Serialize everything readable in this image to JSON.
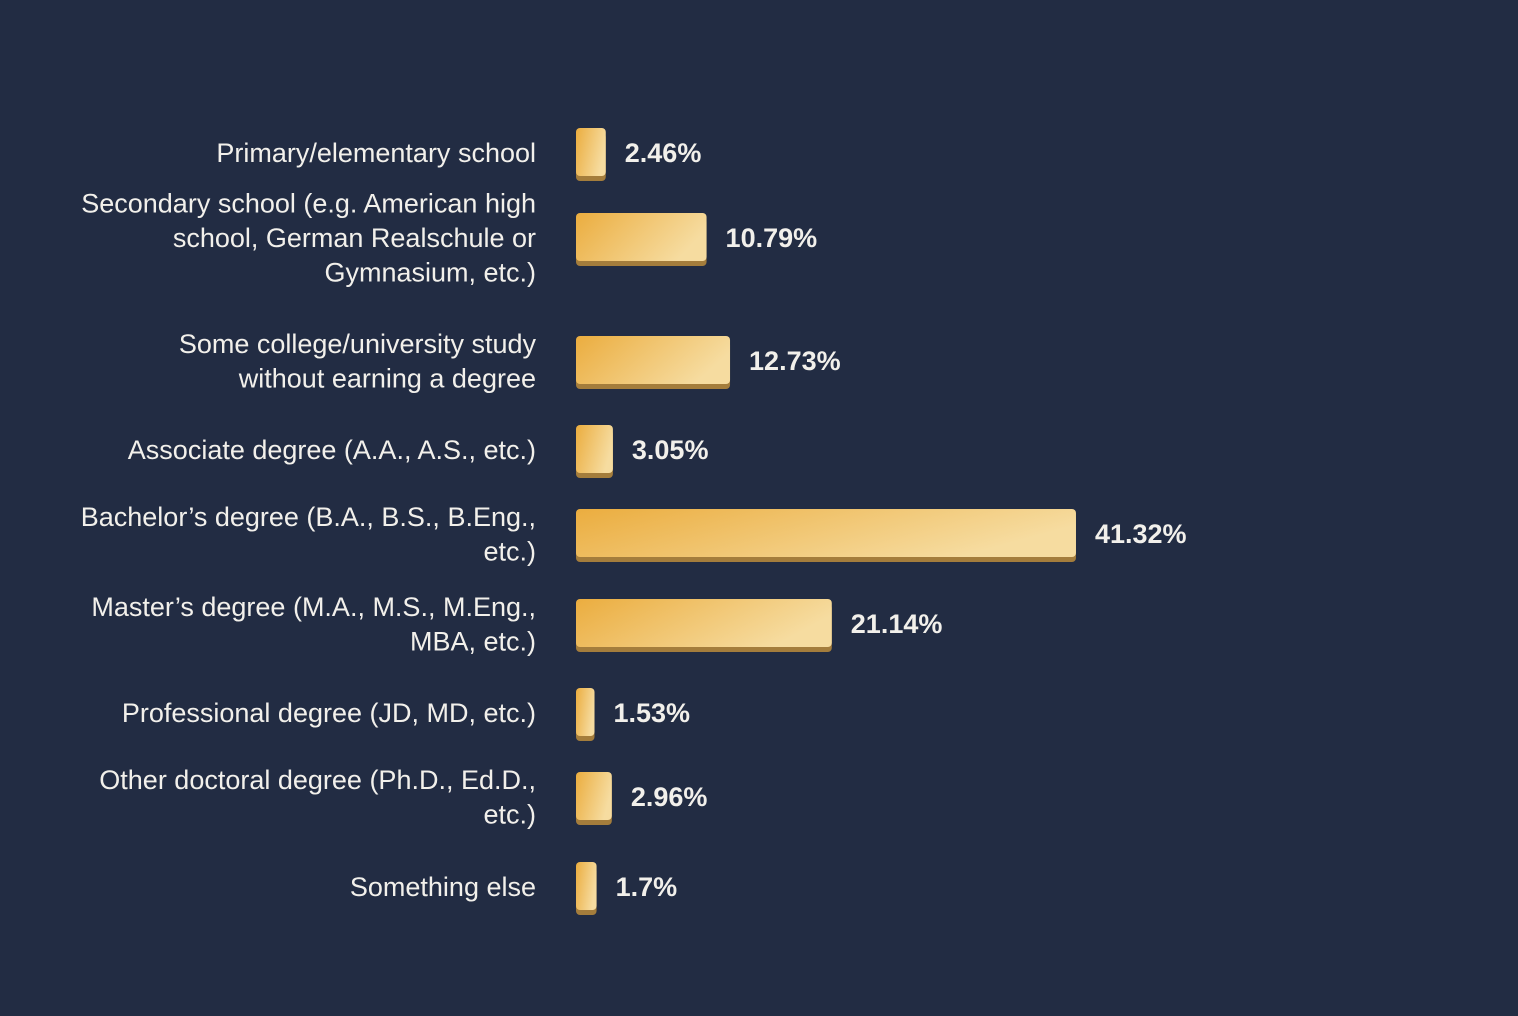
{
  "chart_data": {
    "type": "bar",
    "orientation": "horizontal",
    "categories": [
      [
        "Primary/elementary school"
      ],
      [
        "Secondary school (e.g. American high",
        "school, German Realschule or",
        "Gymnasium, etc.)"
      ],
      [
        "Some college/university study",
        "without earning a degree"
      ],
      [
        "Associate degree (A.A., A.S., etc.)"
      ],
      [
        "Bachelor’s degree (B.A., B.S., B.Eng.,",
        "etc.)"
      ],
      [
        "Master’s degree (M.A., M.S., M.Eng.,",
        "MBA, etc.)"
      ],
      [
        "Professional degree (JD, MD, etc.)"
      ],
      [
        "Other doctoral degree (Ph.D., Ed.D.,",
        "etc.)"
      ],
      [
        "Something else"
      ]
    ],
    "values": [
      2.46,
      10.79,
      12.73,
      3.05,
      41.32,
      21.14,
      1.53,
      2.96,
      1.7
    ],
    "value_labels": [
      "2.46%",
      "10.79%",
      "12.73%",
      "3.05%",
      "41.32%",
      "21.14%",
      "1.53%",
      "2.96%",
      "1.7%"
    ],
    "title": "",
    "xlabel": "",
    "ylabel": "",
    "grid": false,
    "legend": "none",
    "colors": {
      "background": "#222c43",
      "bar_start": "#ebad3f",
      "bar_end": "#f6dca0",
      "bar_shadow": "#a47d3c",
      "text": "#f2f0eb"
    }
  }
}
